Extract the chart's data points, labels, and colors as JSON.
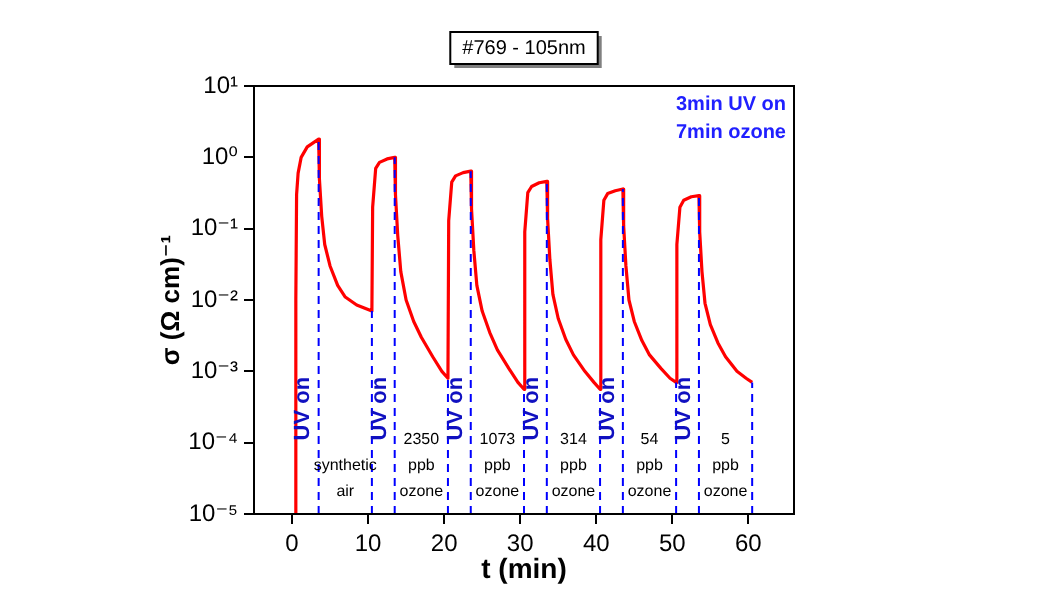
{
  "chart_data": {
    "type": "line",
    "title": "#769 - 105nm",
    "xlabel": "t (min)",
    "ylabel": "σ (Ω cm)⁻¹",
    "log": "y",
    "grid": false,
    "legend": false,
    "marker": "none",
    "line_style": "solid",
    "xlim": [
      -5,
      66
    ],
    "xticks": [
      0,
      10,
      20,
      30,
      40,
      50,
      60
    ],
    "ylim": [
      1e-05,
      10
    ],
    "yticks": [
      {
        "value": 1e-05,
        "label": "10⁻⁵"
      },
      {
        "value": 0.0001,
        "label": "10⁻⁴"
      },
      {
        "value": 0.001,
        "label": "10⁻³"
      },
      {
        "value": 0.01,
        "label": "10⁻²"
      },
      {
        "value": 0.1,
        "label": "10⁻¹"
      },
      {
        "value": 1,
        "label": "10⁰"
      },
      {
        "value": 10,
        "label": "10¹"
      }
    ],
    "series": [
      {
        "color": "#ff0000",
        "x": [
          0.5,
          0.5,
          0.6,
          0.8,
          1.2,
          2,
          3.5,
          3.6,
          3.9,
          4.3,
          5,
          6,
          7,
          8.5,
          10.5,
          10.6,
          11,
          11.5,
          12.5,
          13.5,
          13.6,
          13.9,
          14.3,
          15,
          16,
          17,
          18.5,
          19.7,
          20.5,
          20.6,
          21,
          21.5,
          22.5,
          23.5,
          23.6,
          23.9,
          24.3,
          25,
          26,
          27,
          28.5,
          29.7,
          30.5,
          30.6,
          31,
          31.5,
          32.5,
          33.5,
          33.6,
          33.9,
          34.3,
          35,
          36,
          37,
          38.5,
          39.7,
          40.5,
          40.6,
          41,
          41.5,
          42.5,
          43.5,
          43.6,
          43.9,
          44.3,
          45,
          46,
          47,
          48.5,
          49.7,
          50.5,
          50.6,
          51,
          51.5,
          52.5,
          53.5,
          53.6,
          53.9,
          54.3,
          55,
          56,
          57,
          58.5,
          59.7,
          60.5
        ],
        "values": [
          1e-05,
          0.01,
          0.3,
          0.6,
          1.0,
          1.4,
          1.8,
          0.5,
          0.15,
          0.06,
          0.03,
          0.016,
          0.011,
          0.0085,
          0.007,
          0.2,
          0.7,
          0.85,
          0.95,
          1.0,
          0.3,
          0.08,
          0.025,
          0.01,
          0.005,
          0.003,
          0.0016,
          0.001,
          0.0008,
          0.13,
          0.45,
          0.55,
          0.61,
          0.64,
          0.19,
          0.05,
          0.016,
          0.007,
          0.0035,
          0.002,
          0.0011,
          0.0007,
          0.00056,
          0.09,
          0.32,
          0.39,
          0.44,
          0.46,
          0.14,
          0.037,
          0.012,
          0.0055,
          0.0028,
          0.0017,
          0.001,
          0.0007,
          0.00056,
          0.07,
          0.25,
          0.31,
          0.34,
          0.36,
          0.11,
          0.03,
          0.01,
          0.005,
          0.0027,
          0.0017,
          0.0011,
          0.0008,
          0.0007,
          0.06,
          0.2,
          0.25,
          0.28,
          0.29,
          0.09,
          0.025,
          0.009,
          0.0045,
          0.0025,
          0.0016,
          0.001,
          0.0008,
          0.0007
        ]
      }
    ],
    "ref_lines": [
      {
        "axis": "x",
        "value": 3.5,
        "color": "#0000ff",
        "line_style": "dashed"
      },
      {
        "axis": "x",
        "value": 10.5,
        "color": "#0000ff",
        "line_style": "dashed"
      },
      {
        "axis": "x",
        "value": 13.5,
        "color": "#0000ff",
        "line_style": "dashed"
      },
      {
        "axis": "x",
        "value": 20.5,
        "color": "#0000ff",
        "line_style": "dashed"
      },
      {
        "axis": "x",
        "value": 23.5,
        "color": "#0000ff",
        "line_style": "dashed"
      },
      {
        "axis": "x",
        "value": 30.5,
        "color": "#0000ff",
        "line_style": "dashed"
      },
      {
        "axis": "x",
        "value": 33.5,
        "color": "#0000ff",
        "line_style": "dashed"
      },
      {
        "axis": "x",
        "value": 40.5,
        "color": "#0000ff",
        "line_style": "dashed"
      },
      {
        "axis": "x",
        "value": 43.5,
        "color": "#0000ff",
        "line_style": "dashed"
      },
      {
        "axis": "x",
        "value": 50.5,
        "color": "#0000ff",
        "line_style": "dashed"
      },
      {
        "axis": "x",
        "value": 53.5,
        "color": "#0000ff",
        "line_style": "dashed"
      },
      {
        "axis": "x",
        "value": 60.5,
        "color": "#0000ff",
        "line_style": "dashed"
      }
    ],
    "annotations": [
      "3min UV on\n7min ozone",
      {
        "text": "UV on",
        "x": 1.5,
        "y": 0.0003
      },
      {
        "text": "UV on",
        "x": 11.5,
        "y": 0.0003
      },
      {
        "text": "UV on",
        "x": 21.5,
        "y": 0.0003
      },
      {
        "text": "UV on",
        "x": 31.5,
        "y": 0.0003
      },
      {
        "text": "UV on",
        "x": 41.5,
        "y": 0.0003
      },
      {
        "text": "UV on",
        "x": 51.5,
        "y": 0.0003
      },
      "synthetic\nair",
      "2350\nppb\nozone",
      "1073\nppb\nozone",
      "314\nppb\nozone",
      "54\nppb\nozone",
      "5\nppb\nozone"
    ]
  }
}
